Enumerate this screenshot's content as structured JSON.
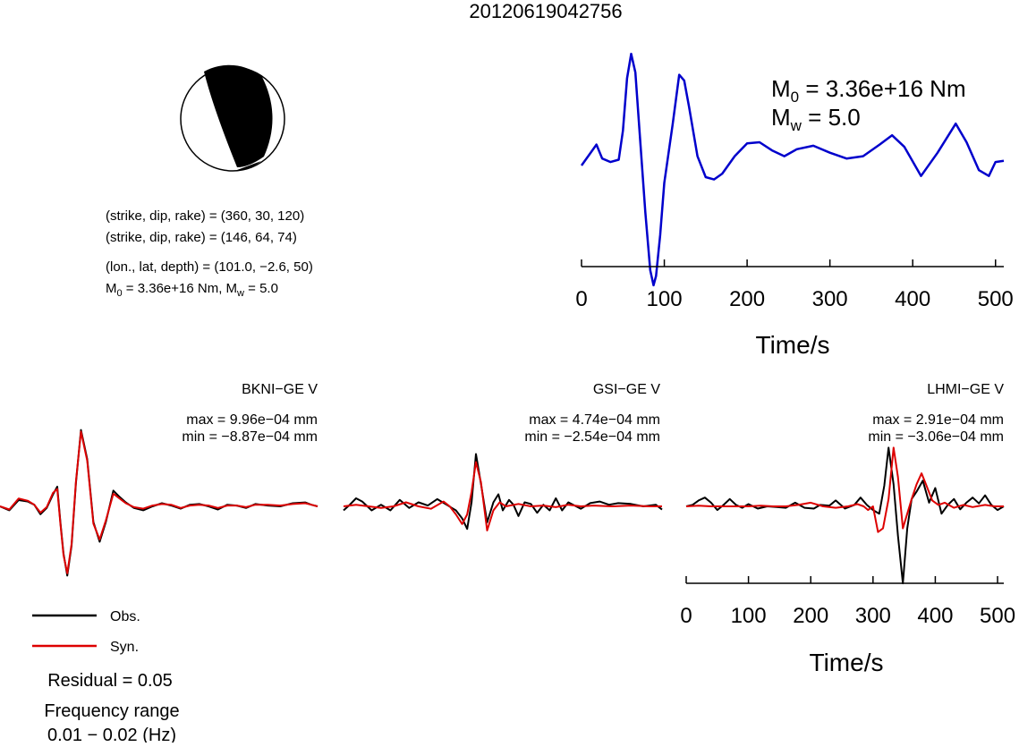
{
  "title": "20120619042756",
  "focal": {
    "line1": "(strike, dip, rake) = (360, 30, 120)",
    "line2": "(strike, dip, rake) = (146, 64, 74)",
    "loc": "(lon., lat, depth) = (101.0, −2.6, 50)",
    "m0_prefix": "M",
    "m0_sub": "0",
    "m0_rest": " = 3.36e+16 Nm, M",
    "mw_sub": "w",
    "mw_rest": " = 5.0"
  },
  "stf": {
    "m0_main": "M",
    "m0_sub": "0",
    "m0_text": " = 3.36e+16 Nm",
    "mw_main": "M",
    "mw_sub": "w",
    "mw_text": " = 5.0",
    "xlabel": "Time/s",
    "color": "#0000cc"
  },
  "colors": {
    "obs": "#000000",
    "syn": "#dd0000"
  },
  "stations": [
    {
      "name": "BKNI−GE V",
      "max": "max = 9.96e−04 mm",
      "min": "min = −8.87e−04 mm"
    },
    {
      "name": "GSI−GE V",
      "max": "max = 4.74e−04 mm",
      "min": "min = −2.54e−04 mm"
    },
    {
      "name": "LHMI−GE V",
      "max": "max = 2.91e−04 mm",
      "min": "min = −3.06e−04 mm"
    }
  ],
  "wave_axis": {
    "xlabel": "Time/s"
  },
  "legend": {
    "obs": "Obs.",
    "syn": "Syn."
  },
  "residual": "Residual = 0.05",
  "freq_label": "Frequency range",
  "freq_value": "0.01 − 0.02 (Hz)",
  "chart_data": [
    {
      "type": "line",
      "title": "",
      "xlabel": "Time/s",
      "ylabel": "",
      "xlim": [
        0,
        510
      ],
      "xticks": [
        "0",
        "100",
        "200",
        "300",
        "400",
        "500"
      ],
      "series": [
        {
          "x": [
            0,
            10,
            18,
            25,
            35,
            45,
            50,
            55,
            60,
            65,
            70,
            77,
            83,
            87,
            90,
            95,
            100,
            110,
            118,
            124,
            130,
            140,
            150,
            160,
            170,
            185,
            200,
            215,
            230,
            245,
            260,
            280,
            300,
            320,
            340,
            360,
            375,
            390,
            410,
            430,
            452,
            465,
            480,
            492,
            500,
            510
          ],
          "values": [
            0.0,
            0.1,
            0.18,
            0.06,
            0.03,
            0.05,
            0.3,
            0.75,
            0.96,
            0.8,
            0.3,
            -0.4,
            -0.9,
            -1.03,
            -0.95,
            -0.6,
            -0.15,
            0.35,
            0.78,
            0.73,
            0.5,
            0.08,
            -0.1,
            -0.12,
            -0.07,
            0.08,
            0.19,
            0.2,
            0.13,
            0.08,
            0.14,
            0.17,
            0.11,
            0.06,
            0.08,
            0.18,
            0.26,
            0.16,
            -0.09,
            0.11,
            0.36,
            0.2,
            -0.04,
            -0.09,
            0.03,
            0.04
          ]
        }
      ]
    },
    {
      "type": "line",
      "title": "BKNI−GE V",
      "xlim": [
        0,
        510
      ],
      "series": [
        {
          "name": "Obs.",
          "x": [
            0,
            15,
            30,
            45,
            55,
            65,
            75,
            85,
            92,
            97,
            102,
            108,
            115,
            122,
            130,
            140,
            150,
            160,
            170,
            182,
            192,
            202,
            215,
            230,
            245,
            260,
            275,
            290,
            305,
            320,
            335,
            350,
            365,
            380,
            395,
            410,
            430,
            450,
            470,
            490,
            500,
            510
          ],
          "values": [
            0.0,
            -0.05,
            0.08,
            0.06,
            0.02,
            -0.1,
            -0.02,
            0.15,
            0.25,
            -0.2,
            -0.6,
            -0.88,
            -0.5,
            0.3,
            0.97,
            0.6,
            -0.2,
            -0.45,
            -0.2,
            0.2,
            0.12,
            0.05,
            -0.02,
            -0.05,
            0.0,
            0.04,
            0.01,
            -0.03,
            0.02,
            0.03,
            0.0,
            -0.04,
            0.02,
            0.01,
            -0.02,
            0.03,
            0.01,
            0.0,
            0.04,
            0.05,
            0.02,
            0.0
          ]
        },
        {
          "name": "Syn.",
          "x": [
            0,
            15,
            30,
            45,
            55,
            65,
            75,
            85,
            92,
            97,
            102,
            108,
            115,
            122,
            130,
            140,
            150,
            160,
            170,
            182,
            192,
            202,
            215,
            230,
            245,
            260,
            275,
            290,
            305,
            320,
            335,
            350,
            365,
            380,
            395,
            410,
            430,
            450,
            470,
            490,
            500,
            510
          ],
          "values": [
            0.0,
            -0.04,
            0.1,
            0.07,
            0.02,
            -0.08,
            -0.01,
            0.17,
            0.22,
            -0.22,
            -0.62,
            -0.85,
            -0.48,
            0.32,
            0.95,
            0.58,
            -0.22,
            -0.42,
            -0.18,
            0.16,
            0.1,
            0.04,
            -0.01,
            -0.03,
            0.01,
            0.03,
            0.02,
            -0.02,
            0.01,
            0.02,
            0.01,
            -0.02,
            0.01,
            0.01,
            -0.01,
            0.02,
            0.02,
            0.01,
            0.03,
            0.04,
            0.02,
            0.0
          ]
        }
      ]
    },
    {
      "type": "line",
      "title": "GSI−GE V",
      "xlim": [
        0,
        510
      ],
      "series": [
        {
          "name": "Obs.",
          "x": [
            0,
            10,
            20,
            30,
            45,
            60,
            75,
            90,
            105,
            120,
            135,
            150,
            165,
            180,
            190,
            198,
            205,
            212,
            220,
            230,
            240,
            248,
            255,
            265,
            272,
            280,
            290,
            300,
            310,
            320,
            330,
            340,
            350,
            360,
            370,
            380,
            395,
            410,
            425,
            440,
            460,
            480,
            500,
            510
          ],
          "values": [
            -0.05,
            0.02,
            0.1,
            0.06,
            -0.05,
            0.02,
            -0.05,
            0.08,
            -0.02,
            0.05,
            0.01,
            0.09,
            0.02,
            -0.05,
            -0.15,
            -0.28,
            0.05,
            0.65,
            0.28,
            -0.2,
            0.05,
            0.15,
            -0.05,
            0.08,
            0.02,
            -0.12,
            0.05,
            0.03,
            -0.08,
            0.02,
            -0.05,
            0.1,
            -0.05,
            0.05,
            0.01,
            -0.03,
            0.04,
            0.06,
            0.02,
            0.04,
            0.03,
            0.0,
            0.02,
            -0.04
          ]
        },
        {
          "name": "Syn.",
          "x": [
            0,
            20,
            40,
            60,
            80,
            100,
            120,
            140,
            160,
            170,
            180,
            190,
            198,
            205,
            212,
            220,
            230,
            240,
            250,
            260,
            280,
            300,
            320,
            340,
            360,
            380,
            400,
            430,
            460,
            490,
            510
          ],
          "values": [
            0.0,
            0.02,
            0.0,
            -0.02,
            0.0,
            0.05,
            0.0,
            -0.03,
            0.06,
            0.0,
            -0.1,
            -0.22,
            -0.1,
            0.18,
            0.55,
            0.3,
            -0.3,
            -0.05,
            0.05,
            0.0,
            0.03,
            0.0,
            0.01,
            -0.01,
            0.02,
            0.0,
            0.01,
            0.0,
            0.01,
            0.0,
            0.0
          ]
        }
      ]
    },
    {
      "type": "line",
      "title": "LHMI−GE V",
      "xlabel": "Time/s",
      "xlim": [
        0,
        510
      ],
      "xticks": [
        "0",
        "100",
        "200",
        "300",
        "400",
        "500"
      ],
      "series": [
        {
          "name": "Obs.",
          "x": [
            0,
            10,
            20,
            30,
            40,
            50,
            60,
            70,
            80,
            90,
            100,
            115,
            130,
            145,
            160,
            175,
            190,
            205,
            215,
            230,
            240,
            255,
            270,
            280,
            290,
            300,
            310,
            318,
            325,
            333,
            340,
            348,
            355,
            362,
            370,
            380,
            390,
            400,
            410,
            420,
            430,
            440,
            450,
            460,
            470,
            480,
            490,
            500,
            510
          ],
          "values": [
            0.0,
            0.02,
            0.08,
            0.12,
            0.05,
            -0.05,
            0.02,
            0.1,
            0.02,
            -0.02,
            0.03,
            -0.03,
            0.0,
            -0.01,
            -0.02,
            0.05,
            -0.02,
            -0.03,
            0.02,
            0.01,
            0.08,
            -0.03,
            0.02,
            0.12,
            0.02,
            -0.05,
            -0.1,
            0.28,
            0.8,
            0.3,
            -0.4,
            -1.05,
            -0.3,
            0.1,
            0.2,
            0.35,
            0.05,
            0.25,
            -0.1,
            0.02,
            0.1,
            -0.04,
            0.05,
            0.12,
            0.04,
            0.15,
            0.02,
            -0.05,
            0.0
          ]
        },
        {
          "name": "Syn.",
          "x": [
            0,
            20,
            40,
            60,
            80,
            100,
            120,
            140,
            160,
            180,
            200,
            220,
            240,
            260,
            275,
            285,
            292,
            300,
            308,
            316,
            325,
            333,
            340,
            348,
            355,
            362,
            370,
            378,
            385,
            395,
            405,
            415,
            430,
            445,
            460,
            480,
            495,
            510
          ],
          "values": [
            0.0,
            0.01,
            0.0,
            0.0,
            0.0,
            0.0,
            0.01,
            0.0,
            0.0,
            0.02,
            0.05,
            0.0,
            -0.02,
            0.0,
            0.03,
            0.0,
            -0.05,
            0.0,
            -0.35,
            -0.3,
            0.1,
            0.8,
            0.4,
            -0.3,
            -0.1,
            0.1,
            0.3,
            0.45,
            0.3,
            0.08,
            0.02,
            0.05,
            -0.02,
            0.02,
            -0.01,
            0.02,
            0.0,
            0.0
          ]
        }
      ]
    }
  ]
}
